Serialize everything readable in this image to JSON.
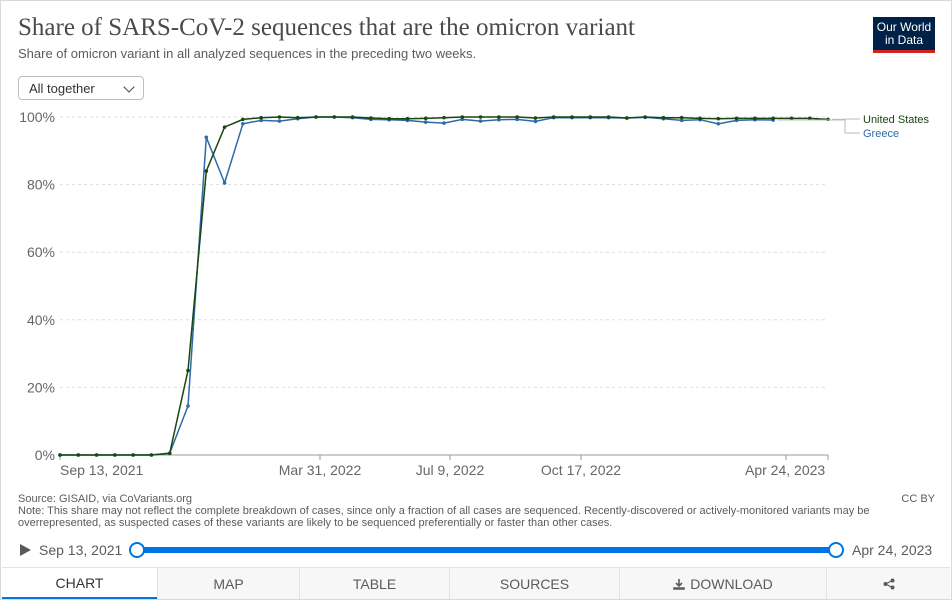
{
  "header": {
    "title": "Share of SARS-CoV-2 sequences that are the omicron variant",
    "subtitle": "Share of omicron variant in all analyzed sequences in the preceding two weeks.",
    "logo_line1": "Our World",
    "logo_line2": "in Data",
    "logo_bg": "#002147",
    "logo_accent": "#ce261e"
  },
  "selector": {
    "value": "All together"
  },
  "chart_data": {
    "type": "line",
    "y_ticks": [
      "0%",
      "20%",
      "40%",
      "60%",
      "80%",
      "100%"
    ],
    "x_ticks": [
      "Sep 13, 2021",
      "Mar 31, 2022",
      "Jul 9, 2022",
      "Oct 17, 2022",
      "Apr 24, 2023"
    ],
    "ylim": [
      0,
      100
    ],
    "xlim": [
      "2021-09-13",
      "2023-04-24"
    ],
    "grid": "horizontal dashed",
    "legend_placement": "right",
    "series": [
      {
        "name": "United States",
        "color": "#18470f",
        "points": [
          [
            "2021-09-13",
            0
          ],
          [
            "2021-09-27",
            0
          ],
          [
            "2021-10-11",
            0
          ],
          [
            "2021-10-25",
            0
          ],
          [
            "2021-11-08",
            0
          ],
          [
            "2021-11-22",
            0
          ],
          [
            "2021-12-06",
            0.5
          ],
          [
            "2021-12-20",
            25
          ],
          [
            "2022-01-03",
            84
          ],
          [
            "2022-01-17",
            97
          ],
          [
            "2022-01-31",
            99.3
          ],
          [
            "2022-02-14",
            99.8
          ],
          [
            "2022-02-28",
            100
          ],
          [
            "2022-03-14",
            99.8
          ],
          [
            "2022-03-28",
            100
          ],
          [
            "2022-04-11",
            100
          ],
          [
            "2022-04-25",
            100
          ],
          [
            "2022-05-09",
            99.7
          ],
          [
            "2022-05-23",
            99.5
          ],
          [
            "2022-06-06",
            99.5
          ],
          [
            "2022-06-20",
            99.6
          ],
          [
            "2022-07-04",
            99.8
          ],
          [
            "2022-07-18",
            100
          ],
          [
            "2022-08-01",
            100
          ],
          [
            "2022-08-15",
            100
          ],
          [
            "2022-08-29",
            100
          ],
          [
            "2022-09-12",
            99.7
          ],
          [
            "2022-09-26",
            100
          ],
          [
            "2022-10-10",
            100
          ],
          [
            "2022-10-24",
            100
          ],
          [
            "2022-11-07",
            100
          ],
          [
            "2022-11-21",
            99.7
          ],
          [
            "2022-12-05",
            100
          ],
          [
            "2022-12-19",
            99.8
          ],
          [
            "2023-01-02",
            99.8
          ],
          [
            "2023-01-16",
            99.6
          ],
          [
            "2023-01-30",
            99.5
          ],
          [
            "2023-02-13",
            99.6
          ],
          [
            "2023-02-27",
            99.6
          ],
          [
            "2023-03-13",
            99.6
          ],
          [
            "2023-03-27",
            99.6
          ],
          [
            "2023-04-10",
            99.6
          ],
          [
            "2023-04-24",
            99.3
          ]
        ]
      },
      {
        "name": "Greece",
        "color": "#2c6aa9",
        "points": [
          [
            "2021-09-13",
            0
          ],
          [
            "2021-09-27",
            0
          ],
          [
            "2021-10-11",
            0
          ],
          [
            "2021-10-25",
            0
          ],
          [
            "2021-11-08",
            0
          ],
          [
            "2021-11-22",
            0
          ],
          [
            "2021-12-06",
            0.5
          ],
          [
            "2021-12-20",
            14.5
          ],
          [
            "2022-01-03",
            94
          ],
          [
            "2022-01-17",
            80.5
          ],
          [
            "2022-01-31",
            98
          ],
          [
            "2022-02-14",
            99
          ],
          [
            "2022-02-28",
            98.8
          ],
          [
            "2022-03-14",
            99.5
          ],
          [
            "2022-03-28",
            100
          ],
          [
            "2022-04-11",
            100
          ],
          [
            "2022-04-25",
            99.8
          ],
          [
            "2022-05-09",
            99.3
          ],
          [
            "2022-05-23",
            99.2
          ],
          [
            "2022-06-06",
            99
          ],
          [
            "2022-06-20",
            98.5
          ],
          [
            "2022-07-04",
            98.2
          ],
          [
            "2022-07-18",
            99.3
          ],
          [
            "2022-08-01",
            98.8
          ],
          [
            "2022-08-15",
            99.2
          ],
          [
            "2022-08-29",
            99.3
          ],
          [
            "2022-09-12",
            98.7
          ],
          [
            "2022-09-26",
            99.8
          ],
          [
            "2022-10-10",
            99.8
          ],
          [
            "2022-10-24",
            99.8
          ],
          [
            "2022-11-07",
            99.8
          ],
          [
            "2022-11-21",
            99.7
          ],
          [
            "2022-12-05",
            99.9
          ],
          [
            "2022-12-19",
            99.5
          ],
          [
            "2023-01-02",
            99
          ],
          [
            "2023-01-16",
            99.2
          ],
          [
            "2023-01-30",
            98
          ],
          [
            "2023-02-13",
            99
          ],
          [
            "2023-02-27",
            99.2
          ],
          [
            "2023-03-13",
            99.1
          ]
        ]
      }
    ]
  },
  "notes": {
    "source": "Source: GISAID, via CoVariants.org",
    "note": "Note: This share may not reflect the complete breakdown of cases, since only a fraction of all cases are sequenced. Recently-discovered or actively-monitored variants may be overrepresented, as suspected cases of these variants are likely to be sequenced preferentially or faster than other cases.",
    "license": "CC BY"
  },
  "timeline": {
    "start": "Sep 13, 2021",
    "end": "Apr 24, 2023",
    "accent": "#0073e6"
  },
  "tabs": [
    {
      "label": "CHART",
      "active": true
    },
    {
      "label": "MAP"
    },
    {
      "label": "TABLE"
    },
    {
      "label": "SOURCES"
    },
    {
      "label": "DOWNLOAD",
      "icon": "download-icon"
    },
    {
      "label": "",
      "icon": "share-icon"
    }
  ]
}
